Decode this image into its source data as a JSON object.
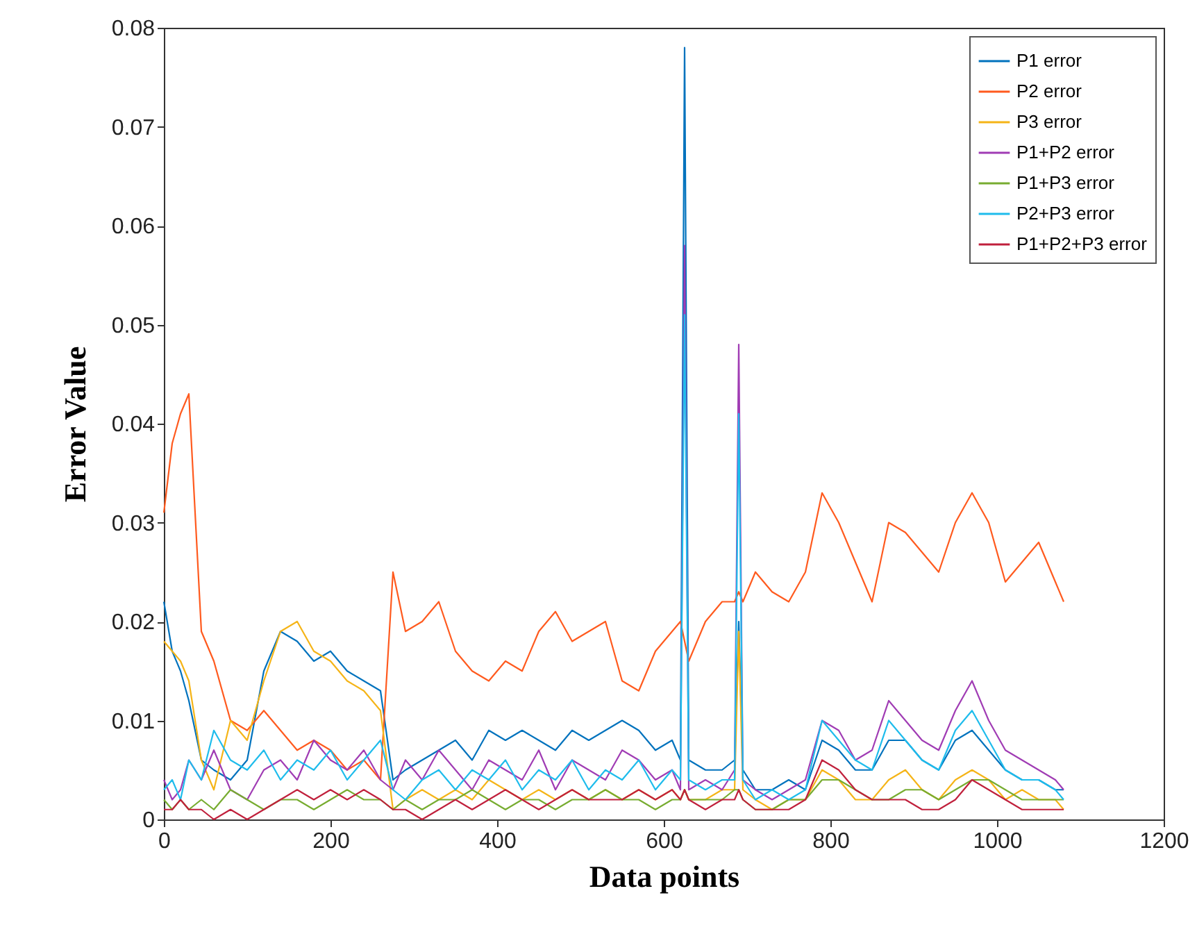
{
  "chart_data": {
    "type": "line",
    "xlabel": "Data points",
    "ylabel": "Error Value",
    "x": [
      0,
      10,
      20,
      30,
      45,
      60,
      80,
      100,
      120,
      140,
      160,
      180,
      200,
      220,
      240,
      260,
      275,
      290,
      310,
      330,
      350,
      370,
      390,
      410,
      430,
      450,
      470,
      490,
      510,
      530,
      550,
      570,
      590,
      610,
      620,
      625,
      630,
      650,
      670,
      685,
      690,
      695,
      710,
      730,
      750,
      770,
      790,
      810,
      830,
      850,
      870,
      890,
      910,
      930,
      950,
      970,
      990,
      1010,
      1030,
      1050,
      1070,
      1080
    ],
    "series": [
      {
        "name": "P1 error",
        "color": "#0072bd",
        "values": [
          0.022,
          0.017,
          0.015,
          0.012,
          0.006,
          0.005,
          0.004,
          0.006,
          0.015,
          0.019,
          0.018,
          0.016,
          0.017,
          0.015,
          0.014,
          0.013,
          0.004,
          0.005,
          0.006,
          0.007,
          0.008,
          0.006,
          0.009,
          0.008,
          0.009,
          0.008,
          0.007,
          0.009,
          0.008,
          0.009,
          0.01,
          0.009,
          0.007,
          0.008,
          0.006,
          0.078,
          0.006,
          0.005,
          0.005,
          0.006,
          0.02,
          0.005,
          0.003,
          0.003,
          0.004,
          0.003,
          0.008,
          0.007,
          0.005,
          0.005,
          0.008,
          0.008,
          0.006,
          0.005,
          0.008,
          0.009,
          0.007,
          0.005,
          0.004,
          0.004,
          0.003,
          0.003
        ]
      },
      {
        "name": "P2 error",
        "color": "#ff5a1e",
        "values": [
          0.031,
          0.038,
          0.041,
          0.043,
          0.019,
          0.016,
          0.01,
          0.009,
          0.011,
          0.009,
          0.007,
          0.008,
          0.007,
          0.005,
          0.006,
          0.004,
          0.025,
          0.019,
          0.02,
          0.022,
          0.017,
          0.015,
          0.014,
          0.016,
          0.015,
          0.019,
          0.021,
          0.018,
          0.019,
          0.02,
          0.014,
          0.013,
          0.017,
          0.019,
          0.02,
          0.018,
          0.016,
          0.02,
          0.022,
          0.022,
          0.023,
          0.022,
          0.025,
          0.023,
          0.022,
          0.025,
          0.033,
          0.03,
          0.026,
          0.022,
          0.03,
          0.029,
          0.027,
          0.025,
          0.03,
          0.033,
          0.03,
          0.024,
          0.026,
          0.028,
          0.024,
          0.022
        ]
      },
      {
        "name": "P3 error",
        "color": "#f5b417",
        "values": [
          0.018,
          0.017,
          0.016,
          0.014,
          0.006,
          0.003,
          0.01,
          0.008,
          0.014,
          0.019,
          0.02,
          0.017,
          0.016,
          0.014,
          0.013,
          0.011,
          0.001,
          0.002,
          0.003,
          0.002,
          0.003,
          0.002,
          0.004,
          0.003,
          0.002,
          0.003,
          0.002,
          0.003,
          0.002,
          0.003,
          0.002,
          0.003,
          0.002,
          0.003,
          0.002,
          0.003,
          0.002,
          0.002,
          0.003,
          0.003,
          0.019,
          0.003,
          0.002,
          0.001,
          0.002,
          0.002,
          0.005,
          0.004,
          0.002,
          0.002,
          0.004,
          0.005,
          0.003,
          0.002,
          0.004,
          0.005,
          0.004,
          0.002,
          0.003,
          0.002,
          0.002,
          0.001
        ]
      },
      {
        "name": "P1+P2 error",
        "color": "#a03cb4",
        "values": [
          0.004,
          0.002,
          0.003,
          0.006,
          0.004,
          0.007,
          0.003,
          0.002,
          0.005,
          0.006,
          0.004,
          0.008,
          0.006,
          0.005,
          0.007,
          0.004,
          0.003,
          0.006,
          0.004,
          0.007,
          0.005,
          0.003,
          0.006,
          0.005,
          0.004,
          0.007,
          0.003,
          0.006,
          0.005,
          0.004,
          0.007,
          0.006,
          0.004,
          0.005,
          0.003,
          0.058,
          0.003,
          0.004,
          0.003,
          0.005,
          0.048,
          0.004,
          0.003,
          0.002,
          0.003,
          0.004,
          0.01,
          0.009,
          0.006,
          0.007,
          0.012,
          0.01,
          0.008,
          0.007,
          0.011,
          0.014,
          0.01,
          0.007,
          0.006,
          0.005,
          0.004,
          0.003
        ]
      },
      {
        "name": "P1+P3 error",
        "color": "#77ac30",
        "values": [
          0.002,
          0.001,
          0.002,
          0.001,
          0.002,
          0.001,
          0.003,
          0.002,
          0.001,
          0.002,
          0.002,
          0.001,
          0.002,
          0.003,
          0.002,
          0.002,
          0.001,
          0.002,
          0.001,
          0.002,
          0.002,
          0.003,
          0.002,
          0.001,
          0.002,
          0.002,
          0.001,
          0.002,
          0.002,
          0.003,
          0.002,
          0.002,
          0.001,
          0.002,
          0.002,
          0.003,
          0.002,
          0.002,
          0.002,
          0.003,
          0.003,
          0.002,
          0.001,
          0.001,
          0.002,
          0.002,
          0.004,
          0.004,
          0.003,
          0.002,
          0.002,
          0.003,
          0.003,
          0.002,
          0.003,
          0.004,
          0.004,
          0.003,
          0.002,
          0.002,
          0.002,
          0.002
        ]
      },
      {
        "name": "P2+P3 error",
        "color": "#1ebcec",
        "values": [
          0.003,
          0.004,
          0.002,
          0.006,
          0.004,
          0.009,
          0.006,
          0.005,
          0.007,
          0.004,
          0.006,
          0.005,
          0.007,
          0.004,
          0.006,
          0.008,
          0.003,
          0.002,
          0.004,
          0.005,
          0.003,
          0.005,
          0.004,
          0.006,
          0.003,
          0.005,
          0.004,
          0.006,
          0.003,
          0.005,
          0.004,
          0.006,
          0.003,
          0.005,
          0.004,
          0.051,
          0.004,
          0.003,
          0.004,
          0.004,
          0.041,
          0.004,
          0.002,
          0.003,
          0.002,
          0.003,
          0.01,
          0.008,
          0.006,
          0.005,
          0.01,
          0.008,
          0.006,
          0.005,
          0.009,
          0.011,
          0.008,
          0.005,
          0.004,
          0.004,
          0.003,
          0.002
        ]
      },
      {
        "name": "P1+P2+P3 error",
        "color": "#c0203c",
        "values": [
          0.001,
          0.001,
          0.002,
          0.001,
          0.001,
          0.0,
          0.001,
          0.0,
          0.001,
          0.002,
          0.003,
          0.002,
          0.003,
          0.002,
          0.003,
          0.002,
          0.001,
          0.001,
          0.0,
          0.001,
          0.002,
          0.001,
          0.002,
          0.003,
          0.002,
          0.001,
          0.002,
          0.003,
          0.002,
          0.002,
          0.002,
          0.003,
          0.002,
          0.003,
          0.002,
          0.003,
          0.002,
          0.001,
          0.002,
          0.002,
          0.003,
          0.002,
          0.001,
          0.001,
          0.001,
          0.002,
          0.006,
          0.005,
          0.003,
          0.002,
          0.002,
          0.002,
          0.001,
          0.001,
          0.002,
          0.004,
          0.003,
          0.002,
          0.001,
          0.001,
          0.001,
          0.001
        ]
      }
    ],
    "xlim": [
      0,
      1200
    ],
    "xticks": [
      0,
      200,
      400,
      600,
      800,
      1000,
      1200
    ],
    "ylim": [
      0,
      0.08
    ],
    "yticks": [
      0,
      0.01,
      0.02,
      0.03,
      0.04,
      0.05,
      0.06,
      0.07,
      0.08
    ],
    "legend": "top right"
  }
}
